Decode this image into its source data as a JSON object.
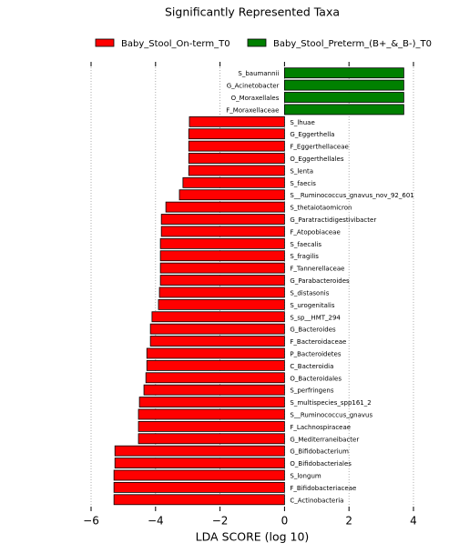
{
  "chart_data": {
    "type": "bar",
    "orientation": "horizontal",
    "title": "Significantly Represented Taxa",
    "xlabel": "LDA SCORE (log 10)",
    "categories": [
      "S_baumannii",
      "G_Acinetobacter",
      "O_Moraxellales",
      "F_Moraxellaceae",
      "S_lhuae",
      "G_Eggerthella",
      "F_Eggerthellaceae",
      "O_Eggerthellales",
      "S_lenta",
      "S_faecis",
      "S__Ruminococcus_gnavus_nov_92_601",
      "S_thetaiotaomicron",
      "G_Paratractidigestivibacter",
      "F_Atopobiaceae",
      "S_faecalis",
      "S_fragilis",
      "F_Tannerellaceae",
      "G_Parabacteroides",
      "S_distasonis",
      "S_urogenitalis",
      "S_sp__HMT_294",
      "G_Bacteroides",
      "F_Bacteroidaceae",
      "P_Bacteroidetes",
      "C_Bacteroidia",
      "O_Bacteroidales",
      "S_perfringens",
      "S_multispecies_spp161_2",
      "S__Ruminococcus_gnavus",
      "F_Lachnospiraceae",
      "G_Mediterraneibacter",
      "G_Bifidobacterium",
      "O_Bifidobacteriales",
      "S_longum",
      "F_Bifidobacteriaceae",
      "C_Actinobacteria"
    ],
    "series": [
      {
        "name": "Baby_Stool_On-term_T0",
        "color": "#ff0000",
        "values": [
          null,
          null,
          null,
          null,
          -2.95,
          -2.97,
          -2.97,
          -2.97,
          -2.97,
          -3.15,
          -3.26,
          -3.68,
          -3.82,
          -3.82,
          -3.85,
          -3.85,
          -3.85,
          -3.85,
          -3.88,
          -3.91,
          -4.11,
          -4.16,
          -4.16,
          -4.27,
          -4.27,
          -4.3,
          -4.36,
          -4.5,
          -4.53,
          -4.53,
          -4.53,
          -5.26,
          -5.26,
          -5.29,
          -5.29,
          -5.29
        ]
      },
      {
        "name": "Baby_Stool_Preterm_(B+_&_B-)_T0",
        "color": "#008000",
        "values": [
          3.7,
          3.7,
          3.7,
          3.7,
          null,
          null,
          null,
          null,
          null,
          null,
          null,
          null,
          null,
          null,
          null,
          null,
          null,
          null,
          null,
          null,
          null,
          null,
          null,
          null,
          null,
          null,
          null,
          null,
          null,
          null,
          null,
          null,
          null,
          null,
          null,
          null
        ]
      }
    ],
    "xlim": [
      -6,
      4
    ],
    "xticks": [
      {
        "value": -6,
        "label": "−6"
      },
      {
        "value": -4,
        "label": "−4"
      },
      {
        "value": -2,
        "label": "−2"
      },
      0,
      2,
      4
    ],
    "grid": true
  }
}
